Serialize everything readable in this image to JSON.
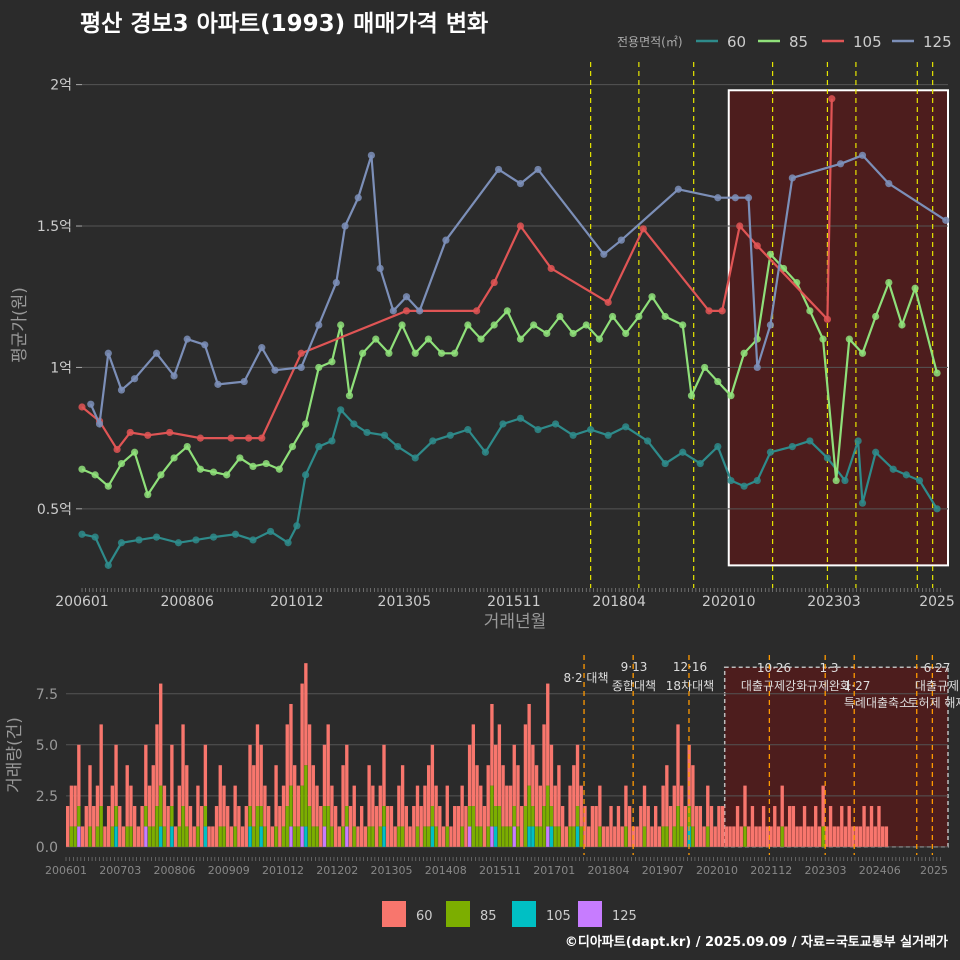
{
  "title": "평산 경보3 아파트(1993) 매매가격 변화",
  "footer": "©디아파트(dapt.kr) / 2025.09.09 / 자료=국토교통부 실거래가",
  "colors": {
    "s60": "#2e8b8b",
    "s85": "#8fe07a",
    "s105": "#e05555",
    "s125": "#7c8fb8",
    "b60": "#f8766d",
    "b85": "#7cae00",
    "b105": "#00bfc4",
    "b125": "#c77cff",
    "policy": "#e6e600",
    "policy_bottom": "#ff9900",
    "highlight": "#5a1a1a"
  },
  "chart_data": [
    {
      "type": "line",
      "xlabel": "거래년월",
      "ylabel": "평균가(원)",
      "legend_title": "전용면적(㎡)",
      "legend_position": "top-right",
      "y_ticks": [
        {
          "v": 0.5,
          "label": "0.5억"
        },
        {
          "v": 1.0,
          "label": "1억"
        },
        {
          "v": 1.5,
          "label": "1.5억"
        },
        {
          "v": 2.0,
          "label": "2억"
        }
      ],
      "ylim": [
        0.22,
        2.08
      ],
      "x_ticks": [
        "200601",
        "200806",
        "201012",
        "201305",
        "201511",
        "201804",
        "202010",
        "202303",
        "2025"
      ],
      "policy_lines": [
        2017.6,
        2018.7,
        2019.95,
        2021.75,
        2023.0,
        2023.65,
        2025.05,
        2025.4
      ],
      "highlight_range": [
        2020.75,
        2025.75
      ],
      "series": [
        {
          "name": "60",
          "points": [
            [
              2006.0,
              0.41
            ],
            [
              2006.3,
              0.4
            ],
            [
              2006.6,
              0.3
            ],
            [
              2006.9,
              0.38
            ],
            [
              2007.3,
              0.39
            ],
            [
              2007.7,
              0.4
            ],
            [
              2008.2,
              0.38
            ],
            [
              2008.6,
              0.39
            ],
            [
              2009.0,
              0.4
            ],
            [
              2009.5,
              0.41
            ],
            [
              2009.9,
              0.39
            ],
            [
              2010.3,
              0.42
            ],
            [
              2010.7,
              0.38
            ],
            [
              2010.9,
              0.44
            ],
            [
              2011.1,
              0.62
            ],
            [
              2011.4,
              0.72
            ],
            [
              2011.7,
              0.74
            ],
            [
              2011.9,
              0.85
            ],
            [
              2012.2,
              0.8
            ],
            [
              2012.5,
              0.77
            ],
            [
              2012.9,
              0.76
            ],
            [
              2013.2,
              0.72
            ],
            [
              2013.6,
              0.68
            ],
            [
              2014.0,
              0.74
            ],
            [
              2014.4,
              0.76
            ],
            [
              2014.8,
              0.78
            ],
            [
              2015.2,
              0.7
            ],
            [
              2015.6,
              0.8
            ],
            [
              2016.0,
              0.82
            ],
            [
              2016.4,
              0.78
            ],
            [
              2016.8,
              0.8
            ],
            [
              2017.2,
              0.76
            ],
            [
              2017.6,
              0.78
            ],
            [
              2018.0,
              0.76
            ],
            [
              2018.4,
              0.79
            ],
            [
              2018.9,
              0.74
            ],
            [
              2019.3,
              0.66
            ],
            [
              2019.7,
              0.7
            ],
            [
              2020.1,
              0.66
            ],
            [
              2020.5,
              0.72
            ],
            [
              2020.8,
              0.6
            ],
            [
              2021.1,
              0.58
            ],
            [
              2021.4,
              0.6
            ],
            [
              2021.7,
              0.7
            ],
            [
              2022.2,
              0.72
            ],
            [
              2022.6,
              0.74
            ],
            [
              2023.0,
              0.68
            ],
            [
              2023.4,
              0.6
            ],
            [
              2023.7,
              0.74
            ],
            [
              2023.8,
              0.52
            ],
            [
              2024.1,
              0.7
            ],
            [
              2024.5,
              0.64
            ],
            [
              2024.8,
              0.62
            ],
            [
              2025.1,
              0.6
            ],
            [
              2025.5,
              0.5
            ]
          ]
        },
        {
          "name": "85",
          "points": [
            [
              2006.0,
              0.64
            ],
            [
              2006.3,
              0.62
            ],
            [
              2006.6,
              0.58
            ],
            [
              2006.9,
              0.66
            ],
            [
              2007.2,
              0.7
            ],
            [
              2007.5,
              0.55
            ],
            [
              2007.8,
              0.62
            ],
            [
              2008.1,
              0.68
            ],
            [
              2008.4,
              0.72
            ],
            [
              2008.7,
              0.64
            ],
            [
              2009.0,
              0.63
            ],
            [
              2009.3,
              0.62
            ],
            [
              2009.6,
              0.68
            ],
            [
              2009.9,
              0.65
            ],
            [
              2010.2,
              0.66
            ],
            [
              2010.5,
              0.64
            ],
            [
              2010.8,
              0.72
            ],
            [
              2011.1,
              0.8
            ],
            [
              2011.4,
              1.0
            ],
            [
              2011.7,
              1.02
            ],
            [
              2011.9,
              1.15
            ],
            [
              2012.1,
              0.9
            ],
            [
              2012.4,
              1.05
            ],
            [
              2012.7,
              1.1
            ],
            [
              2013.0,
              1.05
            ],
            [
              2013.3,
              1.15
            ],
            [
              2013.6,
              1.05
            ],
            [
              2013.9,
              1.1
            ],
            [
              2014.2,
              1.05
            ],
            [
              2014.5,
              1.05
            ],
            [
              2014.8,
              1.15
            ],
            [
              2015.1,
              1.1
            ],
            [
              2015.4,
              1.15
            ],
            [
              2015.7,
              1.2
            ],
            [
              2016.0,
              1.1
            ],
            [
              2016.3,
              1.15
            ],
            [
              2016.6,
              1.12
            ],
            [
              2016.9,
              1.18
            ],
            [
              2017.2,
              1.12
            ],
            [
              2017.5,
              1.15
            ],
            [
              2017.8,
              1.1
            ],
            [
              2018.1,
              1.18
            ],
            [
              2018.4,
              1.12
            ],
            [
              2018.7,
              1.18
            ],
            [
              2019.0,
              1.25
            ],
            [
              2019.3,
              1.18
            ],
            [
              2019.7,
              1.15
            ],
            [
              2019.9,
              0.9
            ],
            [
              2020.2,
              1.0
            ],
            [
              2020.5,
              0.95
            ],
            [
              2020.8,
              0.9
            ],
            [
              2021.1,
              1.05
            ],
            [
              2021.4,
              1.1
            ],
            [
              2021.7,
              1.4
            ],
            [
              2022.0,
              1.35
            ],
            [
              2022.3,
              1.3
            ],
            [
              2022.6,
              1.2
            ],
            [
              2022.9,
              1.1
            ],
            [
              2023.2,
              0.6
            ],
            [
              2023.5,
              1.1
            ],
            [
              2023.8,
              1.05
            ],
            [
              2024.1,
              1.18
            ],
            [
              2024.4,
              1.3
            ],
            [
              2024.7,
              1.15
            ],
            [
              2025.0,
              1.28
            ],
            [
              2025.5,
              0.98
            ]
          ]
        },
        {
          "name": "105",
          "points": [
            [
              2006.0,
              0.86
            ],
            [
              2006.4,
              0.81
            ],
            [
              2006.8,
              0.71
            ],
            [
              2007.1,
              0.77
            ],
            [
              2007.5,
              0.76
            ],
            [
              2008.0,
              0.77
            ],
            [
              2008.7,
              0.75
            ],
            [
              2009.4,
              0.75
            ],
            [
              2009.8,
              0.75
            ],
            [
              2010.1,
              0.75
            ],
            [
              2011.0,
              1.05
            ],
            [
              2013.4,
              1.2
            ],
            [
              2015.0,
              1.2
            ],
            [
              2015.4,
              1.3
            ],
            [
              2016.0,
              1.5
            ],
            [
              2016.7,
              1.35
            ],
            [
              2018.0,
              1.23
            ],
            [
              2018.8,
              1.49
            ],
            [
              2020.3,
              1.2
            ],
            [
              2020.6,
              1.2
            ],
            [
              2021.0,
              1.5
            ],
            [
              2021.4,
              1.43
            ],
            [
              2023.0,
              1.17
            ],
            [
              2023.1,
              1.95
            ]
          ]
        },
        {
          "name": "125",
          "points": [
            [
              2006.2,
              0.87
            ],
            [
              2006.4,
              0.8
            ],
            [
              2006.6,
              1.05
            ],
            [
              2006.9,
              0.92
            ],
            [
              2007.2,
              0.96
            ],
            [
              2007.7,
              1.05
            ],
            [
              2008.1,
              0.97
            ],
            [
              2008.4,
              1.1
            ],
            [
              2008.8,
              1.08
            ],
            [
              2009.1,
              0.94
            ],
            [
              2009.7,
              0.95
            ],
            [
              2010.1,
              1.07
            ],
            [
              2010.4,
              0.99
            ],
            [
              2011.0,
              1.0
            ],
            [
              2011.4,
              1.15
            ],
            [
              2011.8,
              1.3
            ],
            [
              2012.0,
              1.5
            ],
            [
              2012.3,
              1.6
            ],
            [
              2012.6,
              1.75
            ],
            [
              2012.8,
              1.35
            ],
            [
              2013.1,
              1.2
            ],
            [
              2013.4,
              1.25
            ],
            [
              2013.7,
              1.2
            ],
            [
              2014.3,
              1.45
            ],
            [
              2015.5,
              1.7
            ],
            [
              2016.0,
              1.65
            ],
            [
              2016.4,
              1.7
            ],
            [
              2017.9,
              1.4
            ],
            [
              2018.3,
              1.45
            ],
            [
              2019.6,
              1.63
            ],
            [
              2020.5,
              1.6
            ],
            [
              2020.9,
              1.6
            ],
            [
              2021.2,
              1.6
            ],
            [
              2021.4,
              1.0
            ],
            [
              2021.7,
              1.15
            ],
            [
              2022.2,
              1.67
            ],
            [
              2023.3,
              1.72
            ],
            [
              2023.8,
              1.75
            ],
            [
              2024.4,
              1.65
            ],
            [
              2025.7,
              1.52
            ]
          ]
        }
      ]
    },
    {
      "type": "bar",
      "xlabel": "",
      "ylabel": "거래량(건)",
      "y_ticks": [
        {
          "v": 0,
          "label": "0.0"
        },
        {
          "v": 2.5,
          "label": "2.5"
        },
        {
          "v": 5,
          "label": "5.0"
        },
        {
          "v": 7.5,
          "label": "7.5"
        }
      ],
      "ylim": [
        -0.4,
        9.4
      ],
      "x_ticks": [
        "200601",
        "200703",
        "200806",
        "200909",
        "201012",
        "201202",
        "201305",
        "201408",
        "201511",
        "201701",
        "201804",
        "201907",
        "202010",
        "202112",
        "202303",
        "202406",
        "2025"
      ],
      "legend": [
        "60",
        "85",
        "105",
        "125"
      ],
      "annotations": [
        {
          "x": 2017.6,
          "line1": "",
          "line2": "8·2 대책"
        },
        {
          "x": 2018.7,
          "line1": "9·13",
          "line2": "종합대책"
        },
        {
          "x": 2019.95,
          "line1": "12·16",
          "line2": "18차대책"
        },
        {
          "x": 2021.75,
          "line1": "10·26",
          "line2": "대출규제강화"
        },
        {
          "x": 2023.0,
          "line1": "1·3",
          "line2": "규제완화"
        },
        {
          "x": 2023.65,
          "line1": "",
          "line2": "1·27"
        },
        {
          "x": 2023.65,
          "line1": "",
          "line2": "특례대출축소"
        },
        {
          "x": 2025.1,
          "line1": "",
          "line2": "토허제 해제"
        },
        {
          "x": 2025.4,
          "line1": "6·27",
          "line2": "대출규제"
        }
      ],
      "monthly_totals": [
        2,
        3,
        3,
        5,
        1,
        2,
        4,
        2,
        3,
        6,
        1,
        2,
        3,
        5,
        2,
        1,
        4,
        3,
        2,
        1,
        2,
        5,
        3,
        4,
        6,
        8,
        3,
        2,
        5,
        1,
        3,
        6,
        4,
        2,
        1,
        3,
        2,
        5,
        1,
        1,
        2,
        4,
        3,
        2,
        1,
        3,
        2,
        1,
        2,
        5,
        4,
        6,
        5,
        3,
        2,
        1,
        4,
        2,
        3,
        6,
        7,
        4,
        3,
        8,
        9,
        6,
        4,
        3,
        2,
        5,
        6,
        3,
        2,
        1,
        4,
        5,
        2,
        3,
        1,
        2,
        1,
        4,
        3,
        2,
        3,
        5,
        2,
        2,
        1,
        3,
        4,
        2,
        1,
        2,
        3,
        2,
        3,
        4,
        5,
        3,
        2,
        1,
        3,
        1,
        2,
        2,
        3,
        2,
        5,
        6,
        4,
        3,
        2,
        4,
        7,
        5,
        6,
        4,
        3,
        3,
        5,
        4,
        2,
        6,
        7,
        5,
        4,
        3,
        6,
        8,
        5,
        3,
        4,
        2,
        1,
        3,
        4,
        5,
        3,
        2,
        1,
        2,
        2,
        3,
        1,
        1,
        2,
        1,
        2,
        1,
        3,
        2,
        1,
        1,
        2,
        3,
        2,
        1,
        2,
        1,
        3,
        4,
        2,
        3,
        6,
        3,
        2,
        5,
        4,
        2,
        2,
        1,
        3,
        2,
        1,
        2,
        2,
        1,
        1,
        1,
        2,
        1,
        3,
        1,
        2,
        1,
        1,
        2,
        1,
        1,
        2,
        1,
        3,
        1,
        2,
        2,
        1,
        1,
        2,
        1,
        1,
        2,
        1,
        3,
        1,
        2,
        1,
        1,
        2,
        1,
        2,
        1,
        1,
        1,
        2,
        1,
        2,
        1,
        2,
        1,
        1
      ]
    }
  ]
}
